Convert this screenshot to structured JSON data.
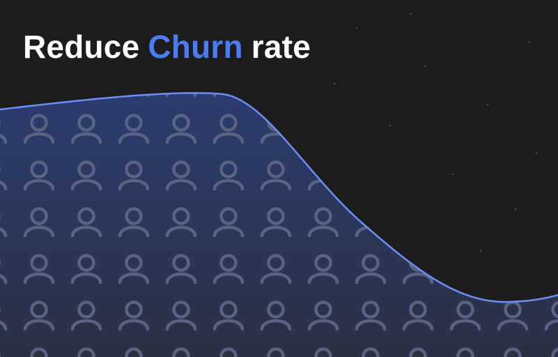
{
  "title": {
    "before": "Reduce",
    "highlight": "Churn",
    "after": "rate"
  }
}
